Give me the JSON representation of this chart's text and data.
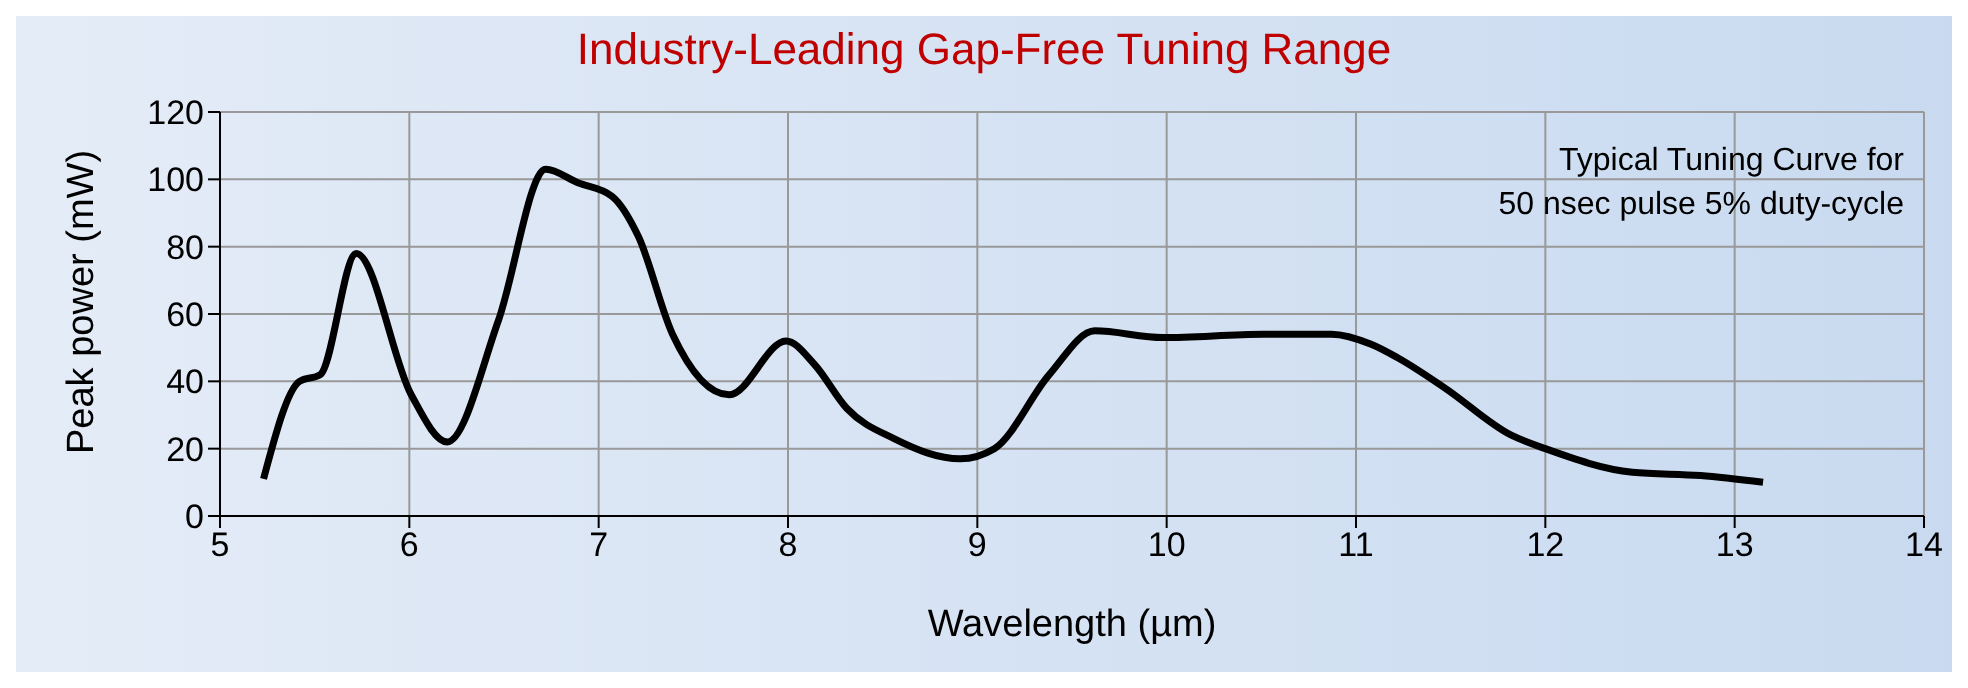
{
  "chart_data": {
    "type": "line",
    "title": "Industry-Leading Gap-Free Tuning Range",
    "xlabel": "Wavelength (µm)",
    "ylabel": "Peak power (mW)",
    "annotations": [
      "Typical Tuning Curve for\n50 nsec pulse 5% duty-cycle"
    ],
    "series": [
      {
        "color": "#000000",
        "x": [
          5.23,
          5.42,
          5.53,
          5.72,
          6.01,
          6.2,
          6.47,
          6.72,
          6.89,
          7.07,
          7.21,
          7.39,
          7.69,
          7.99,
          8.14,
          8.31,
          8.56,
          8.91,
          9.09,
          9.38,
          9.62,
          9.98,
          10.51,
          10.87,
          11.08,
          11.22,
          11.47,
          11.82,
          12.0,
          12.46,
          12.82,
          13.15
        ],
        "values": [
          11,
          40,
          42,
          78,
          36,
          22,
          58,
          103,
          99,
          95,
          83,
          54,
          36,
          52,
          45,
          32,
          23,
          17,
          20,
          42,
          55,
          53,
          54,
          54,
          51,
          47,
          38,
          24,
          20,
          13,
          12,
          10
        ]
      }
    ],
    "xlim": [
      5,
      14
    ],
    "xticks": [
      5,
      6,
      7,
      8,
      9,
      10,
      11,
      12,
      13,
      14
    ],
    "ylim": [
      0,
      120
    ],
    "yticks": [
      0,
      20,
      40,
      60,
      80,
      100,
      120
    ],
    "grid": true,
    "legend": false,
    "marker": "none",
    "line_style": "solid"
  }
}
